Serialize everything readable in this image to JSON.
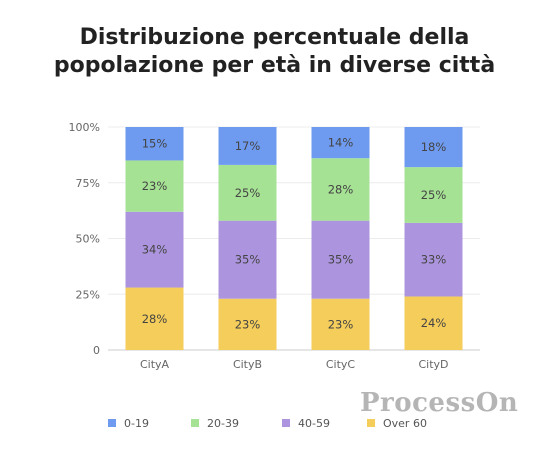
{
  "chart_data": {
    "type": "bar",
    "stacked": true,
    "title_lines": [
      "Distribuzione percentuale della",
      "popolazione per età in diverse città"
    ],
    "categories": [
      "CityA",
      "CityB",
      "CityC",
      "CityD"
    ],
    "ylim": [
      0,
      100
    ],
    "yticks": [
      {
        "value": 0,
        "label": "0"
      },
      {
        "value": 25,
        "label": "25%"
      },
      {
        "value": 50,
        "label": "50%"
      },
      {
        "value": 75,
        "label": "75%"
      },
      {
        "value": 100,
        "label": "100%"
      }
    ],
    "grid": true,
    "legend_position": "bottom",
    "series": [
      {
        "name": "Over 60",
        "color": "#f5cd5a",
        "values": [
          28,
          23,
          23,
          24
        ],
        "labels": [
          "28%",
          "23%",
          "23%",
          "24%"
        ]
      },
      {
        "name": "40-59",
        "color": "#ac95de",
        "values": [
          34,
          35,
          35,
          33
        ],
        "labels": [
          "34%",
          "35%",
          "35%",
          "33%"
        ]
      },
      {
        "name": "20-39",
        "color": "#a6e294",
        "values": [
          23,
          25,
          28,
          25
        ],
        "labels": [
          "23%",
          "25%",
          "28%",
          "25%"
        ]
      },
      {
        "name": "0-19",
        "color": "#6e9bf0",
        "values": [
          15,
          17,
          14,
          18
        ],
        "labels": [
          "15%",
          "17%",
          "14%",
          "18%"
        ]
      }
    ],
    "legend_order": [
      "0-19",
      "20-39",
      "40-59",
      "Over 60"
    ]
  },
  "watermark": "ProcessOn"
}
